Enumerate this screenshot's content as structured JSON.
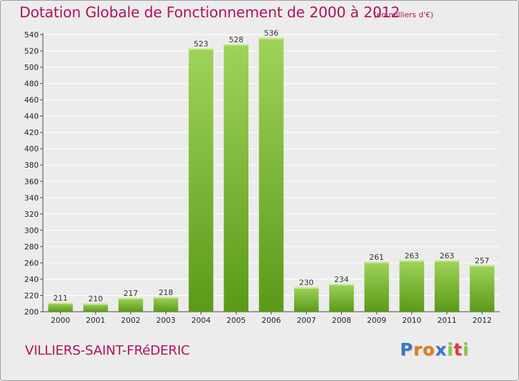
{
  "title": "Dotation Globale de Fonctionnement de 2000 à 2012",
  "subtitle": "(en milliers d'€)",
  "town": "VILLIERS-SAINT-FRéDERIC",
  "logo": {
    "text": "Proxiti",
    "letters": [
      {
        "char": "P",
        "color": "#3a78c8"
      },
      {
        "char": "r",
        "color": "#e07b1a"
      },
      {
        "char": "o",
        "color": "#e07b1a"
      },
      {
        "char": "x",
        "color": "#3a78c8"
      },
      {
        "char": "i",
        "color": "#8cc63f"
      },
      {
        "char": "t",
        "color": "#e03c3c"
      },
      {
        "char": "i",
        "color": "#8cc63f"
      }
    ]
  },
  "colors": {
    "title": "#b0145a",
    "background": "#ececec",
    "bar_light": "#9fd35a",
    "bar_dark": "#5a9a18",
    "grid": "#ffffff"
  },
  "chart_data": {
    "type": "bar",
    "title": "Dotation Globale de Fonctionnement de 2000 à 2012",
    "subtitle": "(en milliers d'€)",
    "xlabel": "",
    "ylabel": "",
    "categories": [
      "2000",
      "2001",
      "2002",
      "2003",
      "2004",
      "2005",
      "2006",
      "2007",
      "2008",
      "2009",
      "2010",
      "2011",
      "2012"
    ],
    "values": [
      211,
      210,
      217,
      218,
      523,
      528,
      536,
      230,
      234,
      261,
      263,
      263,
      257
    ],
    "ylim": [
      200,
      540
    ],
    "yticks": [
      200,
      220,
      240,
      260,
      280,
      300,
      320,
      340,
      360,
      380,
      400,
      420,
      440,
      460,
      480,
      500,
      520,
      540
    ],
    "grid": true,
    "legend": "none"
  }
}
